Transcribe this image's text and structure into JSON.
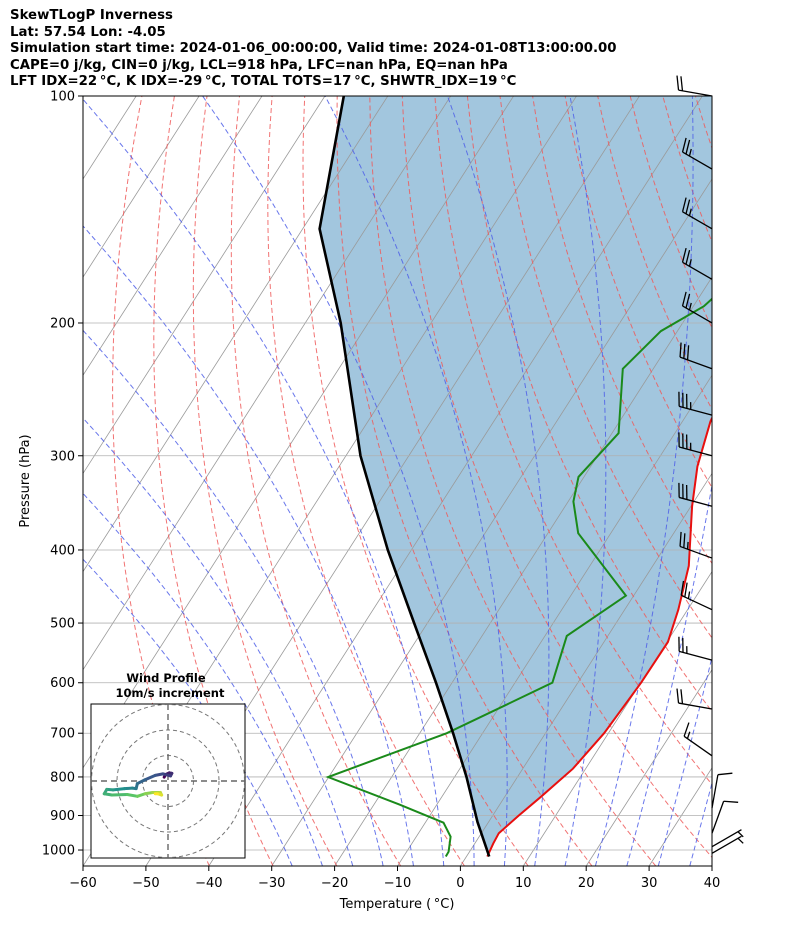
{
  "header": {
    "line1": "SkewTLogP Inverness",
    "line2": "Lat: 57.54   Lon: -4.05",
    "line3": "Simulation start time: 2024-01-06_00:00:00, Valid time: 2024-01-08T13:00:00.00",
    "line4": "CAPE=0 j/kg, CIN=0 j/kg, LCL=918 hPa, LFC=nan hPa, EQ=nan hPa",
    "line5": "LFT IDX=22 °C, K IDX=-29 °C, TOTAL TOTS=17 °C, SHWTR_IDX=19 °C"
  },
  "chart_data": {
    "type": "skewt",
    "xlabel": "Temperature ( °C)",
    "ylabel": "Pressure (hPa)",
    "xlim": [
      -60,
      40
    ],
    "ylim": [
      1050,
      100
    ],
    "x_ticks": [
      -60,
      -50,
      -40,
      -30,
      -20,
      -10,
      0,
      10,
      20,
      30,
      40
    ],
    "x_tick_labels": [
      "−60",
      "−50",
      "−40",
      "−30",
      "−20",
      "−10",
      "0",
      "10",
      "20",
      "30",
      "40"
    ],
    "y_ticks": [
      1000,
      900,
      800,
      700,
      600,
      500,
      400,
      300,
      200,
      100
    ],
    "y_tick_labels": [
      "1000",
      "900",
      "800",
      "700",
      "600",
      "500",
      "400",
      "300",
      "200",
      "100"
    ],
    "grid": true,
    "colors": {
      "temperature": "#e8100f",
      "dewpoint": "#1a8a1a",
      "parcel": "#000000",
      "fill": "#a2c6de",
      "dry_adiabat": "#ef5a5a",
      "moist_adiabat": "#4f5fe8",
      "mixing_ratio": "#9a9a9a",
      "wind_accent": "#3b1f6e"
    },
    "series": [
      {
        "key": "temperature",
        "points": [
          [
            3.0,
            1020
          ],
          [
            2.2,
            980
          ],
          [
            1.7,
            950
          ],
          [
            2.5,
            900
          ],
          [
            3.5,
            850
          ],
          [
            4.8,
            780
          ],
          [
            5.0,
            700
          ],
          [
            4.1,
            600
          ],
          [
            2.9,
            530
          ],
          [
            0.2,
            480
          ],
          [
            -4.0,
            420
          ],
          [
            -11.5,
            350
          ],
          [
            -16.0,
            310
          ],
          [
            -20.0,
            270
          ],
          [
            -22.5,
            235
          ],
          [
            -22.0,
            210
          ],
          [
            -18.0,
            190
          ],
          [
            -14.0,
            170
          ],
          [
            -10.5,
            150
          ],
          [
            -9.0,
            135
          ],
          [
            -5.5,
            120
          ],
          [
            -4.5,
            110
          ],
          [
            -2.5,
            100
          ]
        ]
      },
      {
        "key": "dewpoint",
        "points": [
          [
            -3.6,
            1020
          ],
          [
            -3.8,
            1005
          ],
          [
            -5.5,
            960
          ],
          [
            -8.5,
            920
          ],
          [
            -18.0,
            870
          ],
          [
            -33.0,
            800
          ],
          [
            -20.0,
            700
          ],
          [
            -10.0,
            600
          ],
          [
            -14.0,
            520
          ],
          [
            -10.0,
            460
          ],
          [
            -26.0,
            380
          ],
          [
            -31.0,
            345
          ],
          [
            -33.5,
            320
          ],
          [
            -33.0,
            280
          ],
          [
            -41.0,
            230
          ],
          [
            -40.0,
            205
          ],
          [
            -36.5,
            190
          ],
          [
            -35.0,
            170
          ],
          [
            -36.0,
            150
          ],
          [
            -35.0,
            130
          ],
          [
            -30.0,
            110
          ],
          [
            -24.0,
            100
          ]
        ]
      },
      {
        "key": "parcel",
        "points": [
          [
            3.3,
            1020
          ],
          [
            -3.2,
            918
          ],
          [
            -11.0,
            800
          ],
          [
            -19.0,
            700
          ],
          [
            -28.5,
            600
          ],
          [
            -40.0,
            500
          ],
          [
            -54.0,
            400
          ],
          [
            -71.0,
            300
          ],
          [
            -92.0,
            200
          ],
          [
            -108.0,
            150
          ],
          [
            -122.0,
            100
          ]
        ]
      }
    ],
    "wind_barbs": [
      {
        "p": 100,
        "speed": 20,
        "dir": 280
      },
      {
        "p": 125,
        "speed": 25,
        "dir": 300
      },
      {
        "p": 150,
        "speed": 25,
        "dir": 300
      },
      {
        "p": 175,
        "speed": 25,
        "dir": 300
      },
      {
        "p": 200,
        "speed": 25,
        "dir": 300
      },
      {
        "p": 230,
        "speed": 30,
        "dir": 290
      },
      {
        "p": 265,
        "speed": 35,
        "dir": 285
      },
      {
        "p": 300,
        "speed": 35,
        "dir": 285
      },
      {
        "p": 350,
        "speed": 30,
        "dir": 285
      },
      {
        "p": 410,
        "speed": 25,
        "dir": 290
      },
      {
        "p": 480,
        "speed": 25,
        "dir": 295
      },
      {
        "p": 560,
        "speed": 25,
        "dir": 285
      },
      {
        "p": 650,
        "speed": 20,
        "dir": 280
      },
      {
        "p": 750,
        "speed": 15,
        "dir": 305
      },
      {
        "p": 880,
        "speed": 10,
        "dir": 10
      },
      {
        "p": 950,
        "speed": 10,
        "dir": 20
      },
      {
        "p": 990,
        "speed": 5,
        "dir": 60
      },
      {
        "p": 1010,
        "speed": 5,
        "dir": 60
      }
    ],
    "wind_profile": {
      "title": "Wind Profile",
      "subtitle": "10m/s increment",
      "rings_ms": [
        10,
        20,
        30
      ],
      "hodograph_uv": [
        [
          -1.5,
          1.5
        ],
        [
          -1.0,
          2.5
        ],
        [
          0.5,
          3.2
        ],
        [
          1.5,
          3.0
        ],
        [
          1.0,
          2.0
        ],
        [
          -2.0,
          2.8
        ],
        [
          -5.0,
          2.2
        ],
        [
          -9.0,
          0.5
        ],
        [
          -12.0,
          -1.0
        ],
        [
          -12.5,
          -3.0
        ],
        [
          -14.0,
          -2.8
        ],
        [
          -17.0,
          -3.0
        ],
        [
          -21.5,
          -3.5
        ],
        [
          -24.0,
          -3.3
        ],
        [
          -25.0,
          -5.0
        ],
        [
          -22.0,
          -5.5
        ],
        [
          -16.0,
          -5.3
        ],
        [
          -12.0,
          -6.0
        ],
        [
          -9.0,
          -5.0
        ],
        [
          -6.0,
          -4.5
        ],
        [
          -3.0,
          -4.5
        ],
        [
          -2.5,
          -5.5
        ],
        [
          -4.0,
          -5.0
        ],
        [
          -5.0,
          -5.0
        ]
      ]
    }
  }
}
